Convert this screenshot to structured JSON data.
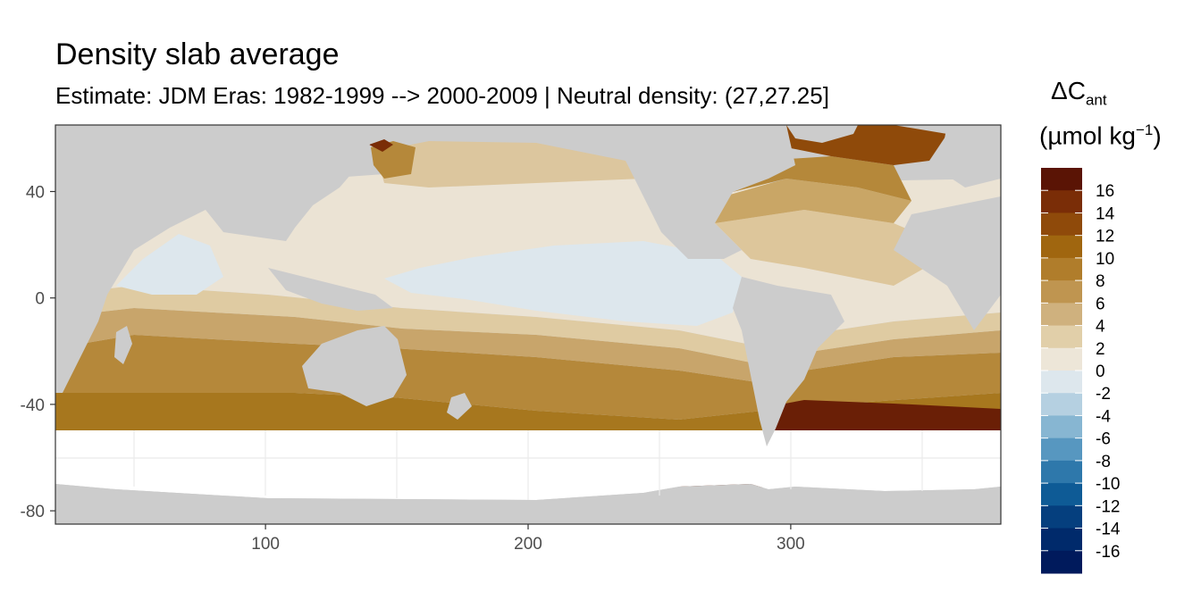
{
  "chart_data": {
    "type": "heatmap",
    "title": "Density slab average",
    "subtitle": "Estimate: JDM Eras: 1982-1999 --> 2000-2009 | Neutral density: (27,27.25]",
    "legend": {
      "title_main": "ΔC",
      "title_sub": "ant",
      "units_main": "(µmol kg",
      "units_sup": "−1",
      "units_end": ")",
      "placement": "right",
      "breaks": [
        16,
        14,
        12,
        10,
        8,
        6,
        4,
        2,
        0,
        -2,
        -4,
        -6,
        -8,
        -10,
        -12,
        -14,
        -16
      ],
      "labels": [
        "16",
        "14",
        "12",
        "10",
        "8",
        "6",
        "4",
        "2",
        "0",
        "-2",
        "-4",
        "-6",
        "-8",
        "-10",
        "-12",
        "-14",
        "-16"
      ],
      "colors": [
        "#5a1405",
        "#7a2d07",
        "#8f4a0a",
        "#a0660f",
        "#b07d2b",
        "#bf9550",
        "#cfb17e",
        "#e1cfa9",
        "#ede6d8",
        "#dde7ed",
        "#b5d0e1",
        "#87b6d2",
        "#5797c0",
        "#2e78ab",
        "#0e5b96",
        "#053f7e",
        "#002a6b",
        "#001a5c"
      ]
    },
    "x_axis": {
      "ticks": [
        100,
        200,
        300
      ],
      "tick_labels": [
        "100",
        "200",
        "300"
      ],
      "range": [
        20,
        380
      ]
    },
    "y_axis": {
      "ticks": [
        40,
        0,
        -40,
        -80
      ],
      "tick_labels": [
        "40",
        "0",
        "-40",
        "-80"
      ],
      "range": [
        -85,
        65
      ]
    },
    "grid": true,
    "colors": {
      "land": "#cccccc",
      "no_data": "#ffffff",
      "panel_border": "#333333"
    }
  }
}
